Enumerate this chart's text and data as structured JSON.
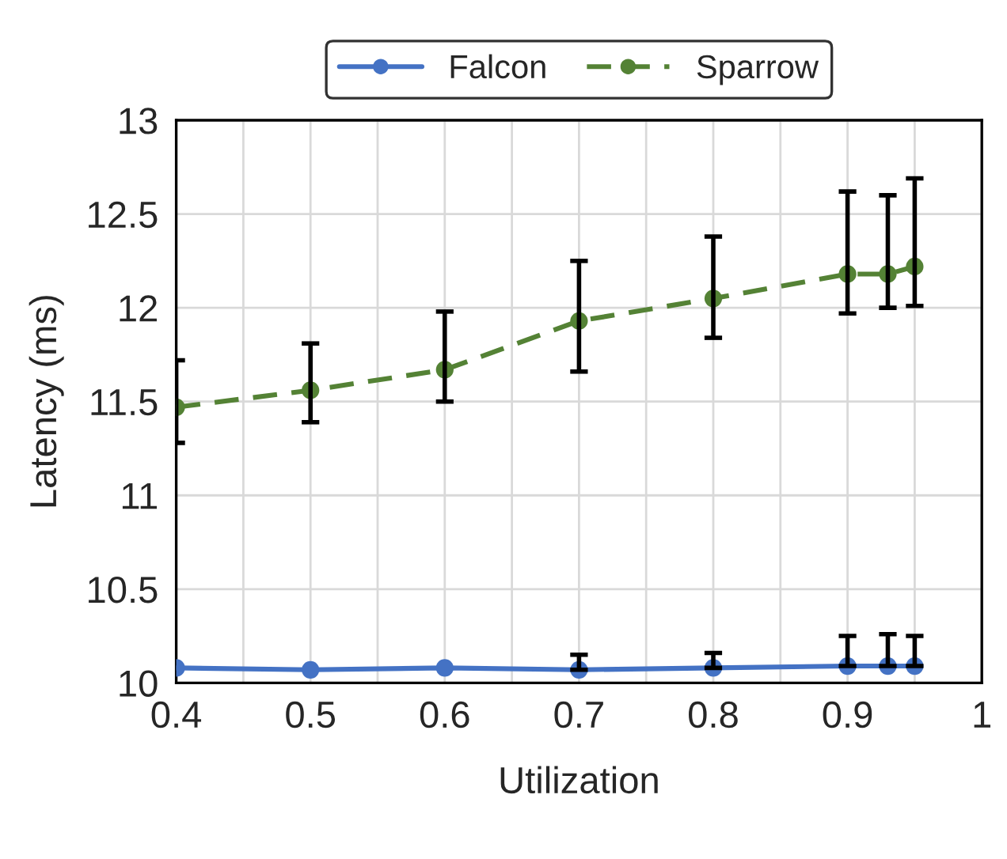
{
  "chart_data": {
    "type": "line",
    "xlabel": "Utilization",
    "ylabel": "Latency (ms)",
    "x": [
      0.4,
      0.5,
      0.6,
      0.7,
      0.8,
      0.9,
      0.93,
      0.95
    ],
    "series": [
      {
        "name": "Falcon",
        "color": "#4472c4",
        "line_style": "solid",
        "values": [
          10.08,
          10.07,
          10.08,
          10.07,
          10.08,
          10.09,
          10.09,
          10.09
        ],
        "errors": [
          null,
          null,
          null,
          [
            10.07,
            10.15
          ],
          [
            10.08,
            10.16
          ],
          [
            10.09,
            10.25
          ],
          [
            10.09,
            10.26
          ],
          [
            10.09,
            10.25
          ]
        ]
      },
      {
        "name": "Sparrow",
        "color": "#548235",
        "line_style": "dashed",
        "values": [
          11.47,
          11.56,
          11.67,
          11.93,
          12.05,
          12.18,
          12.18,
          12.22
        ],
        "errors": [
          [
            11.28,
            11.72
          ],
          [
            11.39,
            11.81
          ],
          [
            11.5,
            11.98
          ],
          [
            11.66,
            12.25
          ],
          [
            11.84,
            12.38
          ],
          [
            11.97,
            12.62
          ],
          [
            12.0,
            12.6
          ],
          [
            12.01,
            12.69
          ]
        ]
      }
    ],
    "marker": "circle",
    "xlim": [
      0.4,
      1
    ],
    "ylim": [
      10,
      13
    ],
    "xticks": [
      0.4,
      {
        "value": 0.45,
        "label": null
      },
      0.5,
      {
        "value": 0.55,
        "label": null
      },
      0.6,
      {
        "value": 0.65,
        "label": null
      },
      0.7,
      {
        "value": 0.75,
        "label": null
      },
      0.8,
      {
        "value": 0.85,
        "label": null
      },
      0.9,
      {
        "value": 0.95,
        "label": null
      },
      1
    ],
    "yticks": [
      10,
      10.5,
      11,
      11.5,
      12,
      12.5,
      13
    ],
    "grid": true,
    "legend": "top"
  }
}
